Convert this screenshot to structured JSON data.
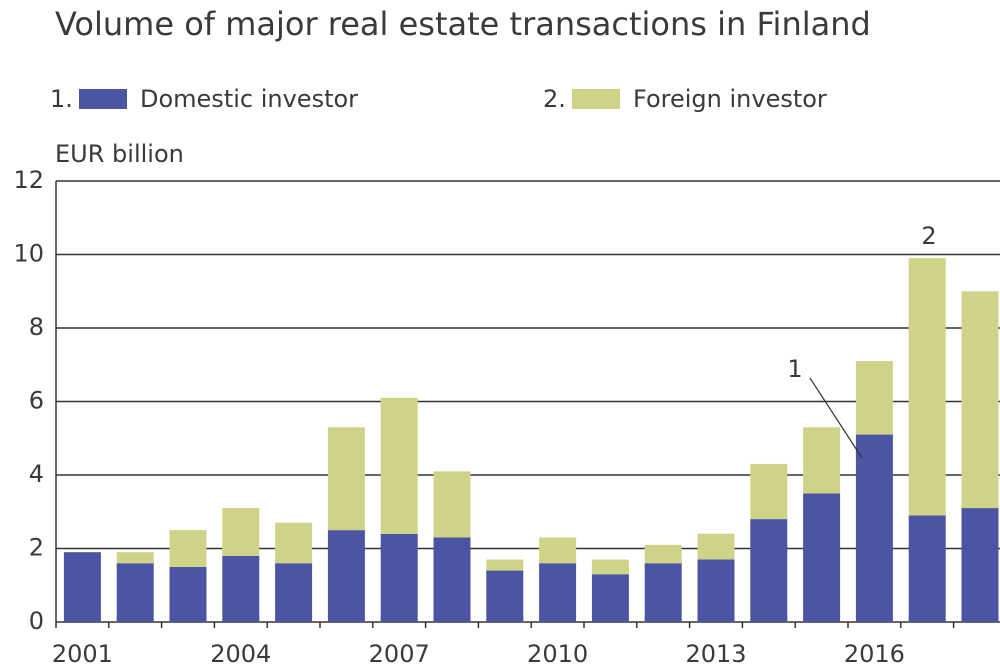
{
  "chart_data": {
    "type": "stacked_bar",
    "title": "Volume of major real estate transactions in Finland",
    "y_label": "EUR billion",
    "categories": [
      "2001",
      null,
      null,
      "2004",
      null,
      null,
      "2007",
      null,
      null,
      "2010",
      null,
      null,
      "2013",
      null,
      null,
      "2016",
      null,
      null
    ],
    "series": [
      {
        "name": "Domestic investor",
        "number": "1.",
        "color": "#4b55a3",
        "values": [
          1.9,
          1.6,
          1.5,
          1.8,
          1.6,
          2.5,
          2.4,
          2.3,
          1.4,
          1.6,
          1.3,
          1.6,
          1.7,
          2.8,
          3.5,
          5.1,
          2.9,
          3.1
        ]
      },
      {
        "name": "Foreign investor",
        "number": "2.",
        "color": "#cfd387",
        "values": [
          0,
          0.3,
          1.0,
          1.3,
          1.1,
          2.8,
          3.7,
          1.8,
          0.3,
          0.7,
          0.4,
          0.5,
          0.7,
          1.5,
          1.8,
          2.0,
          7.0,
          5.9
        ]
      }
    ],
    "annotations": [
      "1",
      "2"
    ],
    "ylim": [
      0,
      12
    ],
    "yticks": [
      0,
      2,
      4,
      6,
      8,
      10,
      12
    ],
    "grid": true
  }
}
